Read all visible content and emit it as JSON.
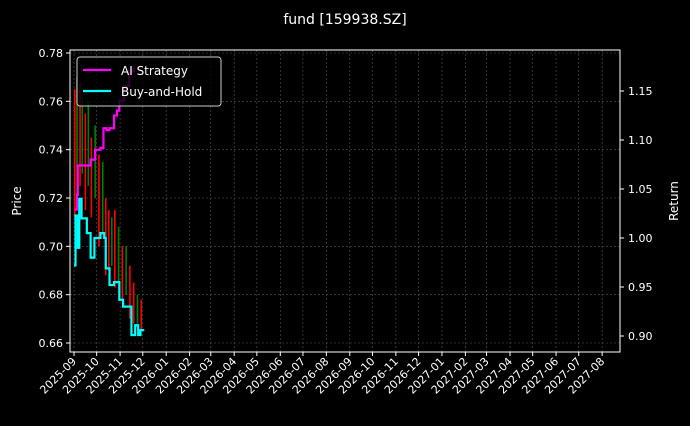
{
  "chart_data": {
    "type": "line",
    "title": "fund [159938.SZ]",
    "ylabel_left": "Price",
    "ylabel_right": "Return",
    "ylim_left": [
      0.66,
      0.78
    ],
    "ylim_right": [
      0.885,
      1.19
    ],
    "yticks_left": [
      "0.66",
      "0.68",
      "0.70",
      "0.72",
      "0.74",
      "0.76",
      "0.78"
    ],
    "yticks_right": [
      "0.90",
      "0.95",
      "1.00",
      "1.05",
      "1.10",
      "1.15"
    ],
    "xticks": [
      "2025-09",
      "2025-10",
      "2025-11",
      "2025-12",
      "2026-01",
      "2026-02",
      "2026-03",
      "2026-04",
      "2026-05",
      "2026-06",
      "2026-07",
      "2026-08",
      "2026-09",
      "2026-10",
      "2026-11",
      "2026-12",
      "2027-01",
      "2027-02",
      "2027-03",
      "2027-04",
      "2027-05",
      "2027-06",
      "2027-07",
      "2027-08"
    ],
    "grid": true,
    "legend_position": "top-left",
    "background": "#000000",
    "series": [
      {
        "name": "AI Strategy",
        "axis": "right",
        "color": "#ff00ff",
        "x": [
          "2025-09-02",
          "2025-09-05",
          "2025-09-06",
          "2025-09-21",
          "2025-09-23",
          "2025-09-29",
          "2025-10-06",
          "2025-10-10",
          "2025-10-14",
          "2025-10-18",
          "2025-10-24",
          "2025-10-28",
          "2025-10-31",
          "2025-11-06",
          "2025-11-13",
          "2025-11-19"
        ],
        "y": [
          1.029,
          1.044,
          1.074,
          1.074,
          1.08,
          1.09,
          1.092,
          1.112,
          1.11,
          1.112,
          1.125,
          1.13,
          1.14,
          1.155,
          1.17,
          1.175
        ]
      },
      {
        "name": "Buy-and-Hold",
        "axis": "right",
        "color": "#00ffff",
        "x": [
          "2025-09-01",
          "2025-09-03",
          "2025-09-06",
          "2025-09-08",
          "2025-09-11",
          "2025-09-18",
          "2025-09-23",
          "2025-09-28",
          "2025-10-06",
          "2025-10-11",
          "2025-10-13",
          "2025-10-18",
          "2025-10-24",
          "2025-10-31",
          "2025-11-05",
          "2025-11-10",
          "2025-11-16",
          "2025-11-21",
          "2025-11-25",
          "2025-11-28",
          "2025-12-03"
        ],
        "y": [
          0.972,
          1.023,
          0.99,
          1.04,
          1.02,
          1.005,
          0.98,
          1.0,
          1.005,
          1.0,
          0.969,
          0.952,
          0.955,
          0.937,
          0.93,
          0.93,
          0.901,
          0.911,
          0.901,
          0.906,
          0.906
        ]
      }
    ],
    "price_bars": {
      "axis": "left",
      "up_color": "#008000",
      "down_color": "#ff0000",
      "bars": [
        [
          "2025-09-02",
          0.712,
          0.765,
          "down"
        ],
        [
          "2025-09-05",
          0.72,
          0.77,
          "up"
        ],
        [
          "2025-09-09",
          0.725,
          0.768,
          "down"
        ],
        [
          "2025-09-12",
          0.73,
          0.762,
          "up"
        ],
        [
          "2025-09-16",
          0.715,
          0.755,
          "down"
        ],
        [
          "2025-09-20",
          0.725,
          0.76,
          "up"
        ],
        [
          "2025-09-24",
          0.712,
          0.745,
          "down"
        ],
        [
          "2025-09-29",
          0.72,
          0.75,
          "up"
        ],
        [
          "2025-10-04",
          0.7,
          0.738,
          "down"
        ],
        [
          "2025-10-09",
          0.705,
          0.735,
          "up"
        ],
        [
          "2025-10-13",
          0.688,
          0.72,
          "down"
        ],
        [
          "2025-10-17",
          0.69,
          0.715,
          "down"
        ],
        [
          "2025-10-21",
          0.692,
          0.712,
          "up"
        ],
        [
          "2025-10-25",
          0.683,
          0.715,
          "down"
        ],
        [
          "2025-10-30",
          0.685,
          0.708,
          "up"
        ],
        [
          "2025-11-04",
          0.678,
          0.7,
          "down"
        ],
        [
          "2025-11-09",
          0.68,
          0.7,
          "up"
        ],
        [
          "2025-11-14",
          0.67,
          0.692,
          "down"
        ],
        [
          "2025-11-19",
          0.668,
          0.685,
          "down"
        ],
        [
          "2025-11-24",
          0.668,
          0.68,
          "up"
        ],
        [
          "2025-11-29",
          0.665,
          0.678,
          "down"
        ]
      ]
    }
  }
}
